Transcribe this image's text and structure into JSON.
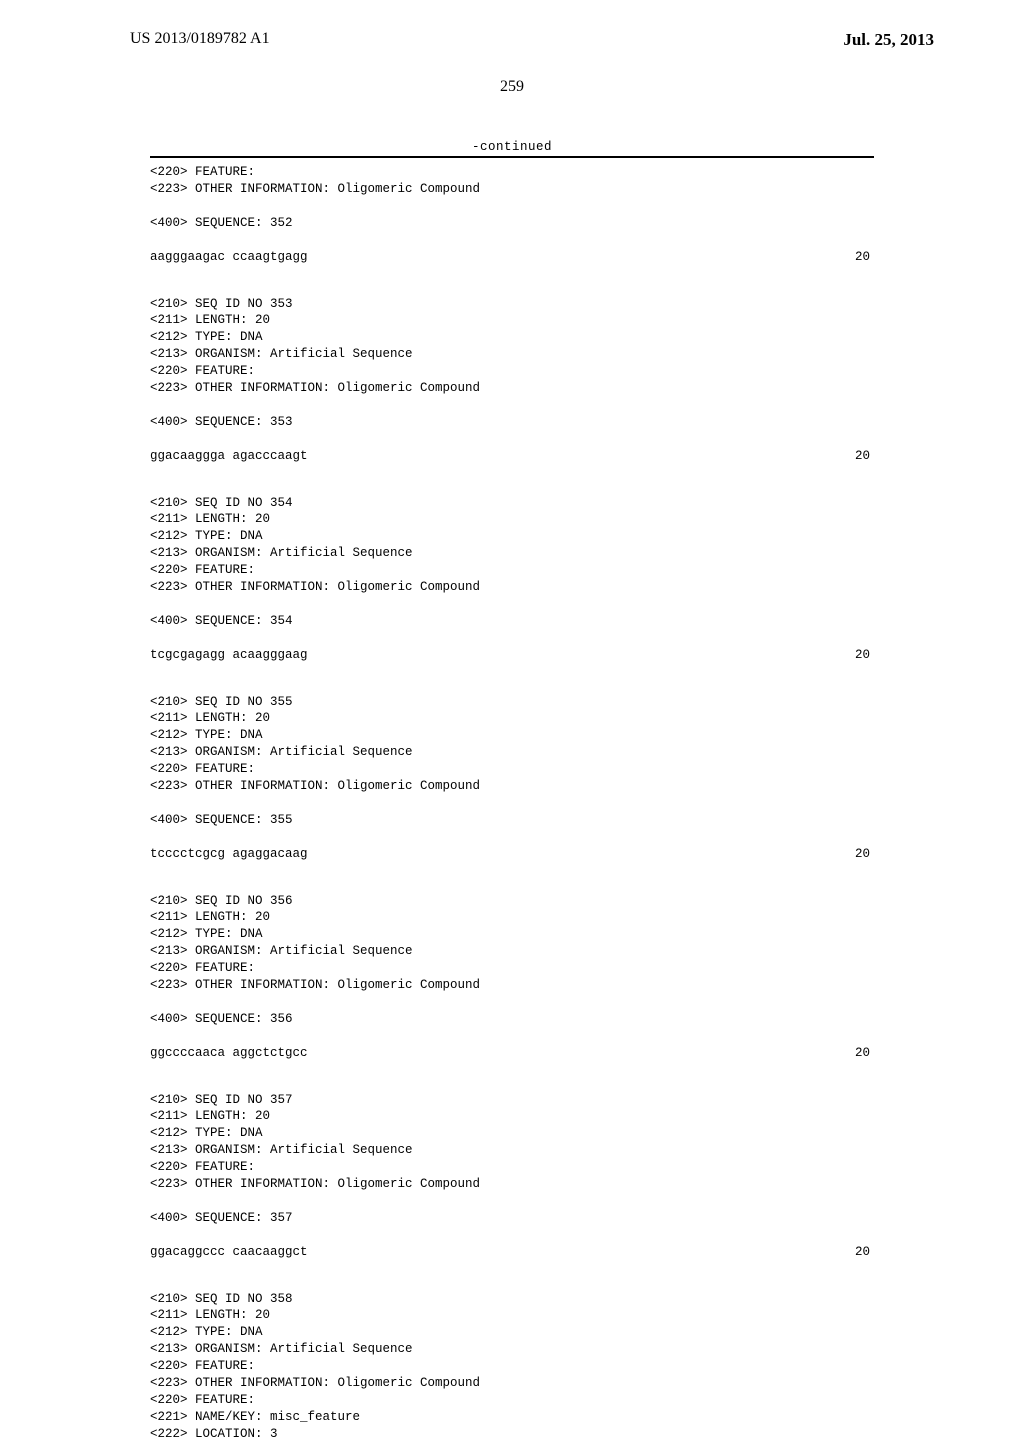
{
  "header": {
    "publication_number": "US 2013/0189782 A1",
    "publication_date": "Jul. 25, 2013"
  },
  "page_number": "259",
  "continued_label": "-continued",
  "entries": [
    {
      "pre_lines": [
        "<220> FEATURE:",
        "<223> OTHER INFORMATION: Oligomeric Compound"
      ],
      "seq_label": "<400> SEQUENCE: 352",
      "sequence": "aagggaagac ccaagtgagg",
      "seq_len": "20"
    },
    {
      "pre_lines": [
        "<210> SEQ ID NO 353",
        "<211> LENGTH: 20",
        "<212> TYPE: DNA",
        "<213> ORGANISM: Artificial Sequence",
        "<220> FEATURE:",
        "<223> OTHER INFORMATION: Oligomeric Compound"
      ],
      "seq_label": "<400> SEQUENCE: 353",
      "sequence": "ggacaaggga agacccaagt",
      "seq_len": "20"
    },
    {
      "pre_lines": [
        "<210> SEQ ID NO 354",
        "<211> LENGTH: 20",
        "<212> TYPE: DNA",
        "<213> ORGANISM: Artificial Sequence",
        "<220> FEATURE:",
        "<223> OTHER INFORMATION: Oligomeric Compound"
      ],
      "seq_label": "<400> SEQUENCE: 354",
      "sequence": "tcgcgagagg acaagggaag",
      "seq_len": "20"
    },
    {
      "pre_lines": [
        "<210> SEQ ID NO 355",
        "<211> LENGTH: 20",
        "<212> TYPE: DNA",
        "<213> ORGANISM: Artificial Sequence",
        "<220> FEATURE:",
        "<223> OTHER INFORMATION: Oligomeric Compound"
      ],
      "seq_label": "<400> SEQUENCE: 355",
      "sequence": "tcccctcgcg agaggacaag",
      "seq_len": "20"
    },
    {
      "pre_lines": [
        "<210> SEQ ID NO 356",
        "<211> LENGTH: 20",
        "<212> TYPE: DNA",
        "<213> ORGANISM: Artificial Sequence",
        "<220> FEATURE:",
        "<223> OTHER INFORMATION: Oligomeric Compound"
      ],
      "seq_label": "<400> SEQUENCE: 356",
      "sequence": "ggccccaaca aggctctgcc",
      "seq_len": "20"
    },
    {
      "pre_lines": [
        "<210> SEQ ID NO 357",
        "<211> LENGTH: 20",
        "<212> TYPE: DNA",
        "<213> ORGANISM: Artificial Sequence",
        "<220> FEATURE:",
        "<223> OTHER INFORMATION: Oligomeric Compound"
      ],
      "seq_label": "<400> SEQUENCE: 357",
      "sequence": "ggacaggccc caacaaggct",
      "seq_len": "20"
    },
    {
      "pre_lines": [
        "<210> SEQ ID NO 358",
        "<211> LENGTH: 20",
        "<212> TYPE: DNA",
        "<213> ORGANISM: Artificial Sequence",
        "<220> FEATURE:",
        "<223> OTHER INFORMATION: Oligomeric Compound",
        "<220> FEATURE:",
        "<221> NAME/KEY: misc_feature",
        "<222> LOCATION: 3"
      ],
      "seq_label": null,
      "sequence": null,
      "seq_len": null
    }
  ]
}
